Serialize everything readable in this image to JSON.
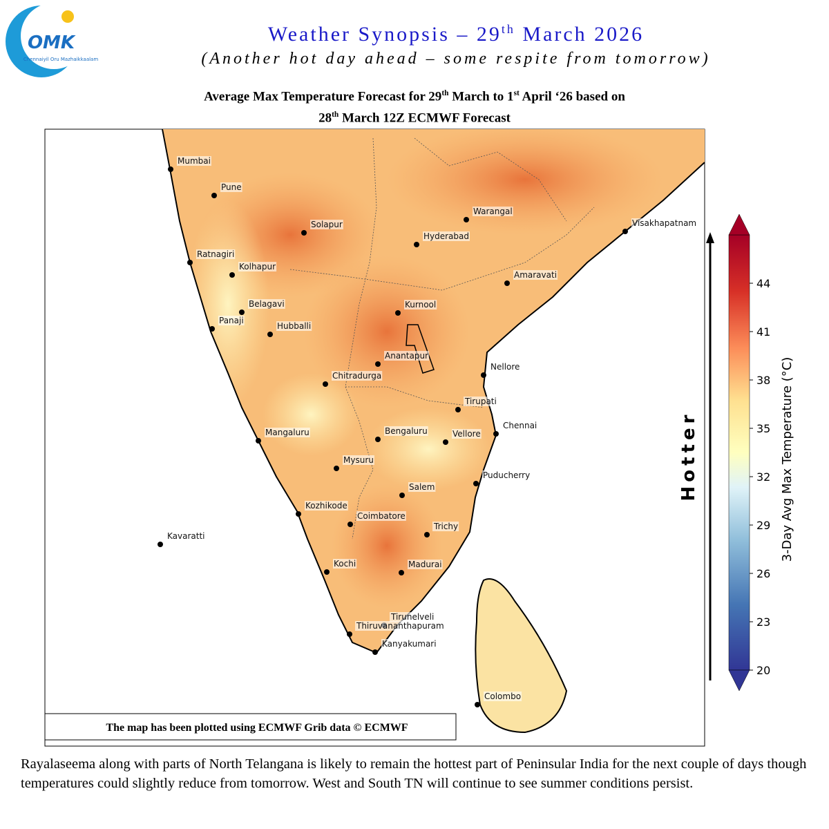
{
  "logo": {
    "mark": "OMK",
    "tagline": "Chennaiyil Oru Mazhaikkaalam"
  },
  "header": {
    "title": [
      "Weather Synopsis – 29",
      "th",
      " March 2026"
    ],
    "subtitle": "(Another hot day ahead – some respite from tomorrow)"
  },
  "map": {
    "title_line1": [
      "Average Max Temperature Forecast for 29",
      "th",
      " March to 1",
      "st",
      " April ‘26 based on"
    ],
    "title_line2": [
      "28",
      "th",
      " March 12Z ECMWF Forecast"
    ],
    "cities": [
      "Mumbai",
      "Pune",
      "Solapur",
      "Warangal",
      "Hyderabad",
      "Visakhapatnam",
      "Ratnagiri",
      "Kolhapur",
      "Amaravati",
      "Belagavi",
      "Kurnool",
      "Panaji",
      "Hubballi",
      "Anantapur",
      "Nellore",
      "Chitradurga",
      "Tirupati",
      "Chennai",
      "Mangaluru",
      "Bengaluru",
      "Vellore",
      "Mysuru",
      "Puducherry",
      "Salem",
      "Kozhikode",
      "Coimbatore",
      "Kavaratti",
      "Trichy",
      "Kochi",
      "Madurai",
      "Tirunelveli",
      "Thiruvananthapuram",
      "Kanyakumari",
      "Colombo"
    ],
    "credit": "The map has been plotted using ECMWF Grib data © ECMWF",
    "arrow_label": "Hotter",
    "colorbar": {
      "label": "3-Day Avg Max Temperature (°C)",
      "lim": [
        20,
        47
      ],
      "ticks": [
        20,
        23,
        26,
        29,
        32,
        35,
        38,
        41,
        44
      ]
    }
  },
  "summary": "Rayalaseema along with parts of North Telangana is likely to remain the hottest part of Peninsular India for the next couple of days though temperatures could slightly reduce from tomorrow. West and South TN will continue to see summer conditions persist."
}
